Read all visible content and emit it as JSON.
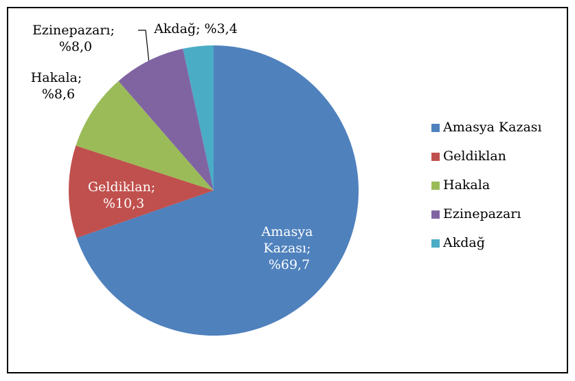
{
  "chart_data": {
    "type": "pie",
    "categories": [
      "Amasya Kazası",
      "Geldiklan",
      "Hakala",
      "Ezinepazarı",
      "Akdağ"
    ],
    "values": [
      69.7,
      10.3,
      8.6,
      8.0,
      3.4
    ],
    "value_labels": [
      "Amasya Kazası; %69,7",
      "Geldiklan; %10,3",
      "Hakala; %8,6",
      "Ezinepazarı; %8,0",
      "Akdağ; %3,4"
    ],
    "colors": [
      "#4f81bd",
      "#c0504d",
      "#9bbb59",
      "#8064a2",
      "#4bacc6"
    ],
    "legend": "right"
  }
}
